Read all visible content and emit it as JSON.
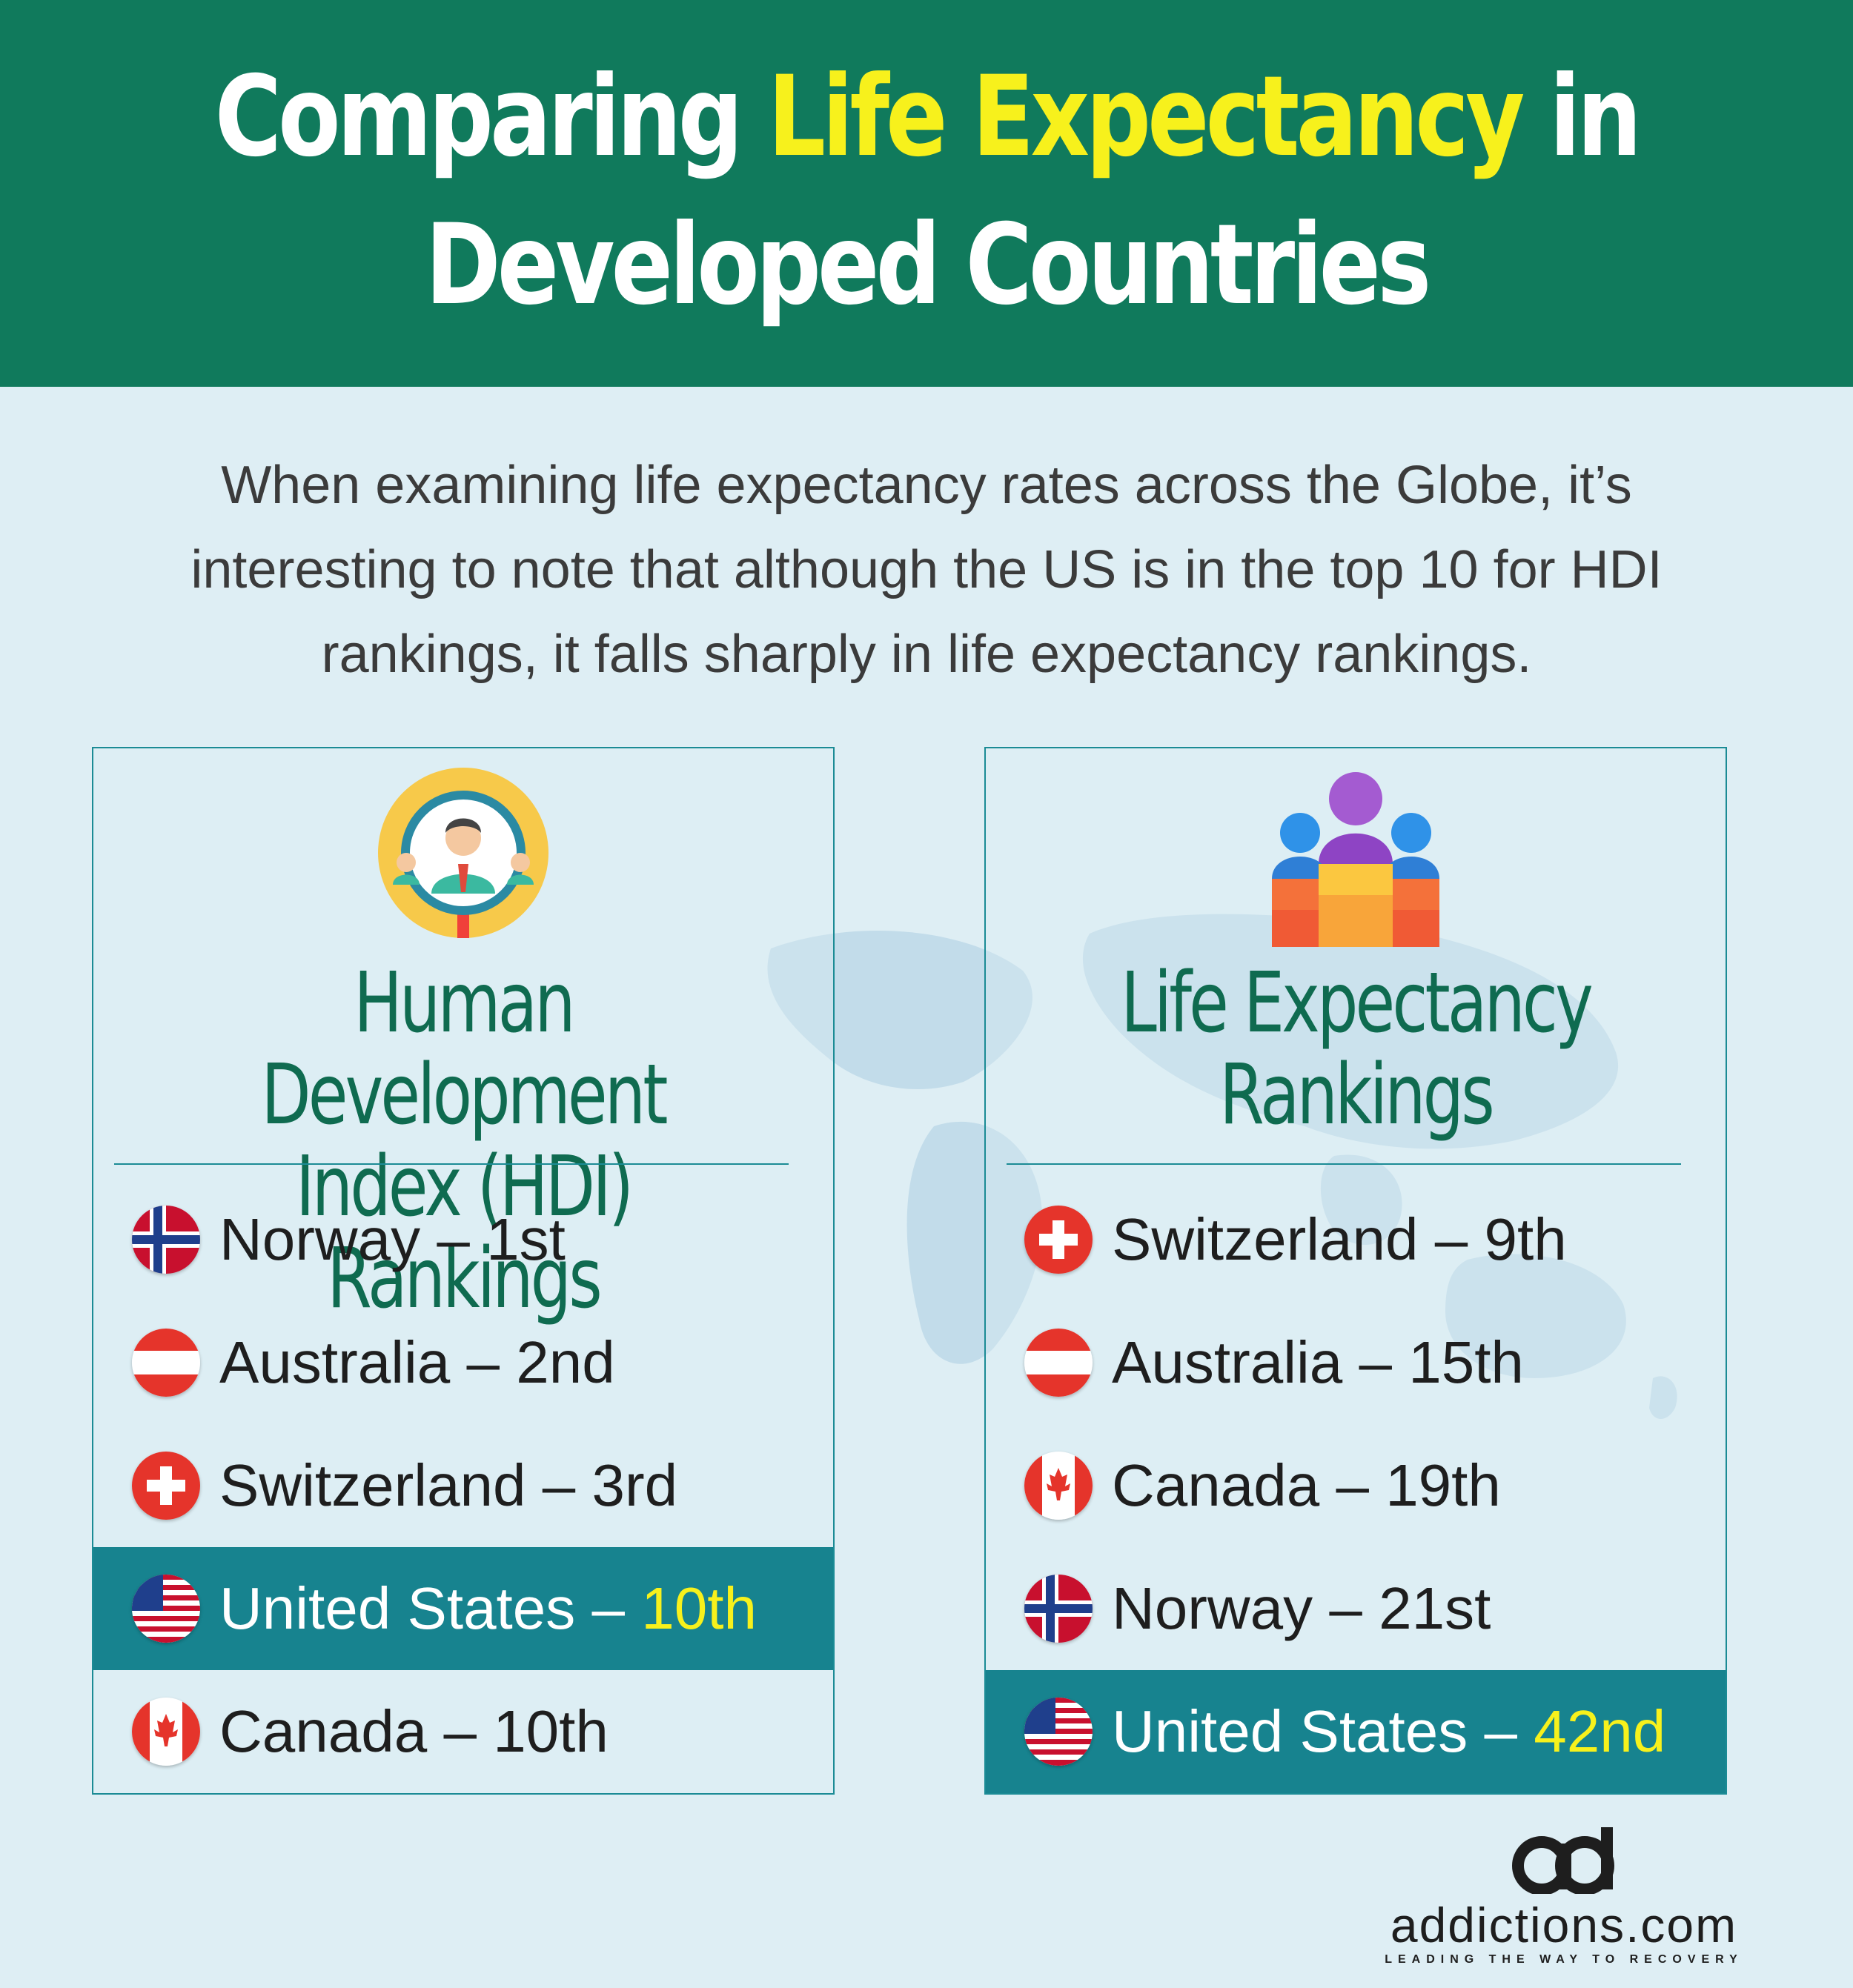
{
  "title": {
    "part1": "Comparing ",
    "highlight": "Life Expectancy",
    "part2": " in",
    "line2": "Developed Countries"
  },
  "intro": {
    "line1": "When examining life expectancy rates across the Globe, it’s",
    "line2": "interesting to note that although the US is in the top 10 for HDI",
    "line3": "rankings, it falls sharply in life expectancy rankings."
  },
  "hdi_panel": {
    "icon": "magnifier-person-icon",
    "title_line1": "Human Development",
    "title_line2": "Index (HDI) Rankings",
    "rows": [
      {
        "country": "Norway",
        "sep": " – ",
        "rank": "1st",
        "flag": "norway",
        "highlight": false
      },
      {
        "country": "Australia",
        "sep": " – ",
        "rank": "2nd",
        "flag": "austria-stripes",
        "highlight": false
      },
      {
        "country": "Switzerland",
        "sep": " – ",
        "rank": "3rd",
        "flag": "switzerland",
        "highlight": false
      },
      {
        "country": "United States",
        "sep": " – ",
        "rank": "10th",
        "flag": "usa",
        "highlight": true
      },
      {
        "country": "Canada",
        "sep": " – ",
        "rank": "10th",
        "flag": "canada",
        "highlight": false
      }
    ]
  },
  "life_panel": {
    "icon": "people-group-icon",
    "title_line1": "Life Expectancy",
    "title_line2": "Rankings",
    "rows": [
      {
        "country": "Switzerland",
        "sep": " – ",
        "rank": "9th",
        "flag": "switzerland",
        "highlight": false
      },
      {
        "country": "Australia",
        "sep": " – ",
        "rank": "15th",
        "flag": "austria-stripes",
        "highlight": false
      },
      {
        "country": "Canada",
        "sep": " – ",
        "rank": "19th",
        "flag": "canada",
        "highlight": false
      },
      {
        "country": "Norway",
        "sep": " – ",
        "rank": "21st",
        "flag": "norway",
        "highlight": false
      },
      {
        "country": "United States",
        "sep": " – ",
        "rank": "42nd",
        "flag": "usa",
        "highlight": true
      }
    ]
  },
  "logo": {
    "name": "addictions.com",
    "tagline": "LEADING THE WAY TO RECOVERY"
  },
  "colors": {
    "header_bg": "#107a5c",
    "accent_yellow": "#f7f11c",
    "highlight_row": "#17838f",
    "panel_title": "#0f6b50",
    "page_bg": "#deeef4"
  }
}
